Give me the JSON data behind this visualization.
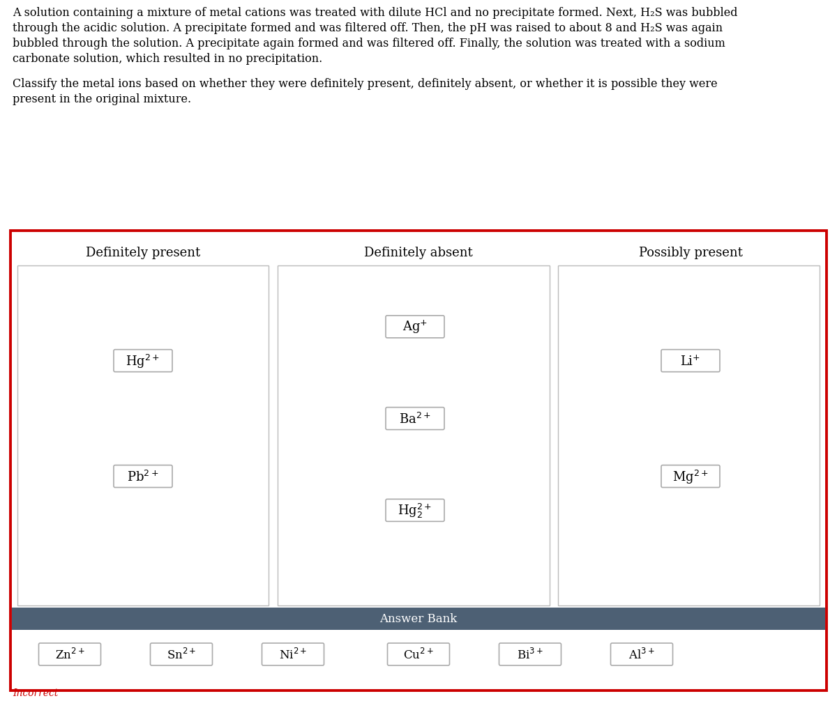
{
  "paragraph1_lines": [
    "A solution containing a mixture of metal cations was treated with dilute HCl and no precipitate formed. Next, H₂S was bubbled",
    "through the acidic solution. A precipitate formed and was filtered off. Then, the pH was raised to about 8 and H₂S was again",
    "bubbled through the solution. A precipitate again formed and was filtered off. Finally, the solution was treated with a sodium",
    "carbonate solution, which resulted in no precipitation."
  ],
  "paragraph2_lines": [
    "Classify the metal ions based on whether they were definitely present, definitely absent, or whether it is possible they were",
    "present in the original mixture."
  ],
  "col_titles": [
    "Definitely present",
    "Definitely absent",
    "Possibly present"
  ],
  "definitely_present": [
    {
      "text": "Hg$^{2+}$",
      "row": 0
    },
    {
      "text": "Pb$^{2+}$",
      "row": 1
    }
  ],
  "definitely_absent": [
    {
      "text": "Ag$^{+}$",
      "row": 0
    },
    {
      "text": "Ba$^{2+}$",
      "row": 1
    },
    {
      "text": "Hg$_2^{2+}$",
      "row": 2
    }
  ],
  "possibly_present": [
    {
      "text": "Li$^{+}$",
      "row": 0
    },
    {
      "text": "Mg$^{2+}$",
      "row": 1
    }
  ],
  "answer_bank_title": "Answer Bank",
  "answer_bank_items": [
    "Zn$^{2+}$",
    "Sn$^{2+}$",
    "Ni$^{2+}$",
    "Cu$^{2+}$",
    "Bi$^{3+}$",
    "Al$^{3+}$"
  ],
  "outer_border_color": "#cc0000",
  "answer_bank_header_color": "#4d6074",
  "incorrect_color": "#cc0000",
  "text_color": "#000000",
  "bg_color": "#ffffff",
  "token_edge_color": "#aaaaaa",
  "inner_box_edge_color": "#bbbbbb"
}
